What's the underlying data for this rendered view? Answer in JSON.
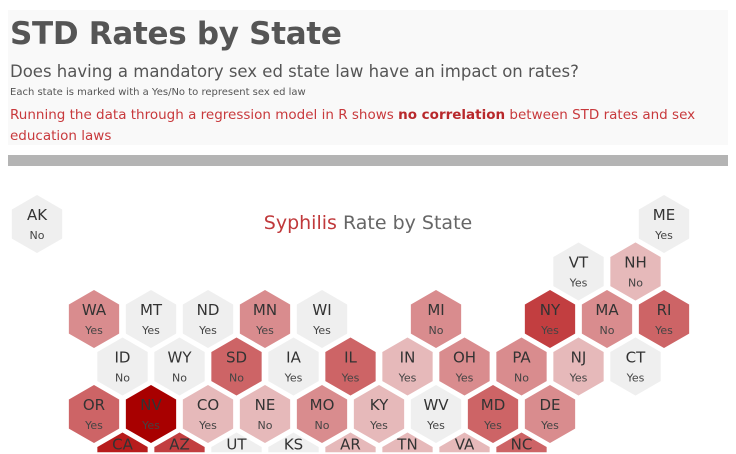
{
  "header": {
    "title": "STD Rates by State",
    "subtitle": "Does having a mandatory sex ed state law have an impact on rates?",
    "note": "Each state is marked with a Yes/No to represent sex ed law",
    "finding_pre": "Running the data through a regression model in R shows ",
    "finding_bold": "no correlation",
    "finding_post": " between STD rates and sex education laws"
  },
  "chart_data": {
    "type": "hex tile map",
    "title_highlight": "Syphilis",
    "title_rest": " Rate by State",
    "color_scale": {
      "low": "#efefef",
      "high": "#a80000"
    },
    "levels_colors": [
      "#efefef",
      "#e6b9ba",
      "#d98c8e",
      "#cd6466",
      "#c23e40",
      "#b71c1c",
      "#a80000"
    ],
    "states": [
      {
        "abbr": "AK",
        "law": "No",
        "level": 0,
        "row": 0,
        "col": -1
      },
      {
        "abbr": "ME",
        "law": "Yes",
        "level": 0,
        "row": 0,
        "col": 10
      },
      {
        "abbr": "VT",
        "law": "Yes",
        "level": 0,
        "row": 1,
        "col": 8
      },
      {
        "abbr": "NH",
        "law": "No",
        "level": 1,
        "row": 1,
        "col": 9
      },
      {
        "abbr": "WA",
        "law": "Yes",
        "level": 2,
        "row": 2,
        "col": 0
      },
      {
        "abbr": "MT",
        "law": "Yes",
        "level": 0,
        "row": 2,
        "col": 1
      },
      {
        "abbr": "ND",
        "law": "Yes",
        "level": 0,
        "row": 2,
        "col": 2
      },
      {
        "abbr": "MN",
        "law": "Yes",
        "level": 2,
        "row": 2,
        "col": 3
      },
      {
        "abbr": "WI",
        "law": "Yes",
        "level": 0,
        "row": 2,
        "col": 4
      },
      {
        "abbr": "MI",
        "law": "No",
        "level": 2,
        "row": 2,
        "col": 6
      },
      {
        "abbr": "NY",
        "law": "Yes",
        "level": 4,
        "row": 2,
        "col": 8
      },
      {
        "abbr": "MA",
        "law": "No",
        "level": 2,
        "row": 2,
        "col": 9
      },
      {
        "abbr": "RI",
        "law": "Yes",
        "level": 3,
        "row": 2,
        "col": 10
      },
      {
        "abbr": "ID",
        "law": "No",
        "level": 0,
        "row": 3,
        "col": 0
      },
      {
        "abbr": "WY",
        "law": "No",
        "level": 0,
        "row": 3,
        "col": 1
      },
      {
        "abbr": "SD",
        "law": "No",
        "level": 3,
        "row": 3,
        "col": 2
      },
      {
        "abbr": "IA",
        "law": "Yes",
        "level": 0,
        "row": 3,
        "col": 3
      },
      {
        "abbr": "IL",
        "law": "Yes",
        "level": 3,
        "row": 3,
        "col": 4
      },
      {
        "abbr": "IN",
        "law": "Yes",
        "level": 1,
        "row": 3,
        "col": 5
      },
      {
        "abbr": "OH",
        "law": "Yes",
        "level": 2,
        "row": 3,
        "col": 6
      },
      {
        "abbr": "PA",
        "law": "No",
        "level": 2,
        "row": 3,
        "col": 7
      },
      {
        "abbr": "NJ",
        "law": "Yes",
        "level": 1,
        "row": 3,
        "col": 8
      },
      {
        "abbr": "CT",
        "law": "Yes",
        "level": 0,
        "row": 3,
        "col": 9
      },
      {
        "abbr": "OR",
        "law": "Yes",
        "level": 3,
        "row": 4,
        "col": 0
      },
      {
        "abbr": "NV",
        "law": "Yes",
        "level": 6,
        "row": 4,
        "col": 1
      },
      {
        "abbr": "CO",
        "law": "Yes",
        "level": 1,
        "row": 4,
        "col": 2
      },
      {
        "abbr": "NE",
        "law": "No",
        "level": 1,
        "row": 4,
        "col": 3
      },
      {
        "abbr": "MO",
        "law": "No",
        "level": 2,
        "row": 4,
        "col": 4
      },
      {
        "abbr": "KY",
        "law": "Yes",
        "level": 1,
        "row": 4,
        "col": 5
      },
      {
        "abbr": "WV",
        "law": "Yes",
        "level": 0,
        "row": 4,
        "col": 6
      },
      {
        "abbr": "MD",
        "law": "Yes",
        "level": 3,
        "row": 4,
        "col": 7
      },
      {
        "abbr": "DE",
        "law": "Yes",
        "level": 2,
        "row": 4,
        "col": 8
      },
      {
        "abbr": "CA",
        "law": "",
        "level": 5,
        "row": 5,
        "col": 0
      },
      {
        "abbr": "AZ",
        "law": "",
        "level": 4,
        "row": 5,
        "col": 1
      },
      {
        "abbr": "UT",
        "law": "",
        "level": 0,
        "row": 5,
        "col": 2
      },
      {
        "abbr": "KS",
        "law": "",
        "level": 0,
        "row": 5,
        "col": 3
      },
      {
        "abbr": "AR",
        "law": "",
        "level": 1,
        "row": 5,
        "col": 4
      },
      {
        "abbr": "TN",
        "law": "",
        "level": 1,
        "row": 5,
        "col": 5
      },
      {
        "abbr": "VA",
        "law": "",
        "level": 1,
        "row": 5,
        "col": 6
      },
      {
        "abbr": "NC",
        "law": "",
        "level": 3,
        "row": 5,
        "col": 7
      }
    ]
  }
}
